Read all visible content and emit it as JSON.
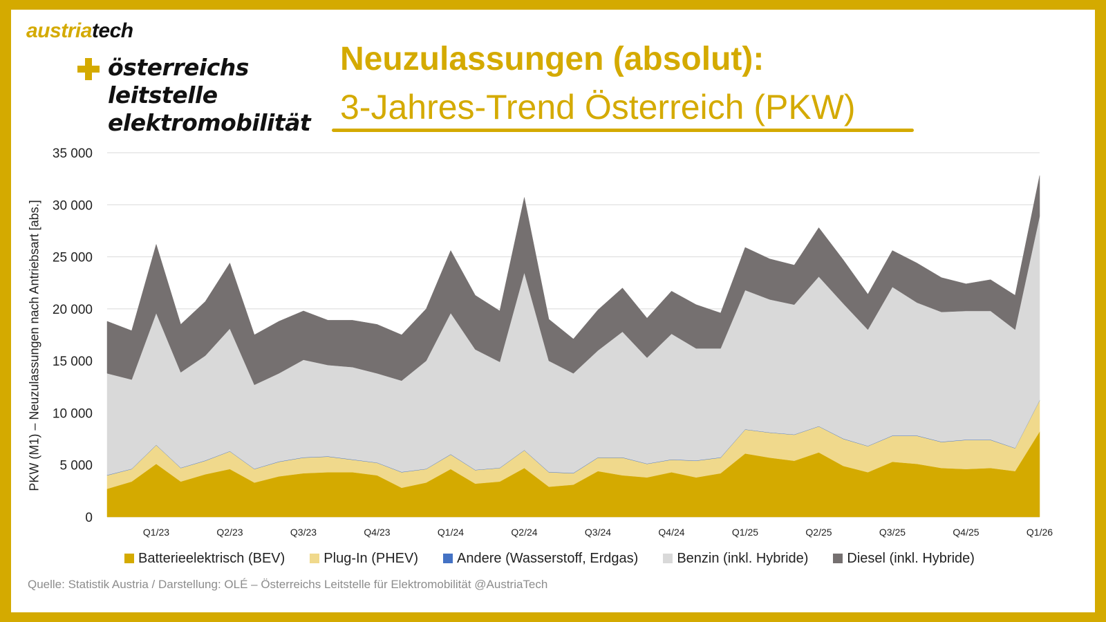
{
  "branding": {
    "logo_part1": "austria",
    "logo_part2": "tech",
    "ole_lines": [
      "österreichs",
      "leitstelle",
      "elektromobilität"
    ]
  },
  "title_line1": "Neuzulassungen (absolut):",
  "title_line2": "3-Jahres-Trend Österreich (PKW)",
  "source": "Quelle: Statistik Austria / Darstellung: OLÉ – Österreichs Leitstelle für Elektromobilität @AustriaTech",
  "colors": {
    "frame": "#d4aa00",
    "bev": "#d4aa00",
    "phev": "#f0d98c",
    "andere": "#4472c4",
    "benzin": "#d9d9d9",
    "diesel": "#757070"
  },
  "chart_data": {
    "type": "area",
    "stacked": true,
    "ylabel": "PKW (M1) – Neuzulassungen nach Antriebsart [abs.]",
    "ylim": [
      0,
      35000
    ],
    "y_ticks": [
      0,
      5000,
      10000,
      15000,
      20000,
      25000,
      30000,
      35000
    ],
    "y_tick_labels": [
      "0",
      "5 000",
      "10 000",
      "15 000",
      "20 000",
      "25 000",
      "30 000",
      "35 000"
    ],
    "grid": true,
    "legend_position": "bottom",
    "x": [
      "2022-11",
      "2022-12",
      "2023-01",
      "2023-02",
      "2023-03",
      "2023-04",
      "2023-05",
      "2023-06",
      "2023-07",
      "2023-08",
      "2023-09",
      "2023-10",
      "2023-11",
      "2023-12",
      "2024-01",
      "2024-02",
      "2024-03",
      "2024-04",
      "2024-05",
      "2024-06",
      "2024-07",
      "2024-08",
      "2024-09",
      "2024-10",
      "2024-11",
      "2024-12",
      "2025-01",
      "2025-02",
      "2025-03",
      "2025-04",
      "2025-05",
      "2025-06",
      "2025-07",
      "2025-08",
      "2025-09",
      "2025-10",
      "2025-11",
      "2025-12",
      "2026-01"
    ],
    "x_tick_labels": [
      {
        "label": "Q1/23",
        "at": 2
      },
      {
        "label": "Q2/23",
        "at": 5
      },
      {
        "label": "Q3/23",
        "at": 8
      },
      {
        "label": "Q4/23",
        "at": 11
      },
      {
        "label": "Q1/24",
        "at": 14
      },
      {
        "label": "Q2/24",
        "at": 17
      },
      {
        "label": "Q3/24",
        "at": 20
      },
      {
        "label": "Q4/24",
        "at": 23
      },
      {
        "label": "Q1/25",
        "at": 26
      },
      {
        "label": "Q2/25",
        "at": 29
      },
      {
        "label": "Q3/25",
        "at": 32
      },
      {
        "label": "Q4/25",
        "at": 35
      },
      {
        "label": "Q1/26",
        "at": 38
      }
    ],
    "series": [
      {
        "name": "Batterieelektrisch (BEV)",
        "color": "#d4aa00",
        "values": [
          2700,
          3400,
          5100,
          3400,
          4100,
          4600,
          3300,
          3900,
          4200,
          4300,
          4300,
          4000,
          2800,
          3300,
          4600,
          3200,
          3400,
          4700,
          2900,
          3100,
          4400,
          4000,
          3800,
          4300,
          3800,
          4200,
          6100,
          5700,
          5400,
          6200,
          4900,
          4300,
          5300,
          5100,
          4700,
          4600,
          4700,
          4400,
          8200
        ]
      },
      {
        "name": "Plug-In (PHEV)",
        "color": "#f0d98c",
        "values": [
          1300,
          1200,
          1800,
          1300,
          1300,
          1700,
          1300,
          1400,
          1500,
          1500,
          1200,
          1200,
          1500,
          1300,
          1400,
          1300,
          1300,
          1700,
          1400,
          1100,
          1300,
          1700,
          1300,
          1200,
          1600,
          1500,
          2300,
          2400,
          2500,
          2500,
          2600,
          2500,
          2500,
          2700,
          2500,
          2800,
          2700,
          2200,
          3000
        ]
      },
      {
        "name": "Andere (Wasserstoff, Erdgas)",
        "color": "#4472c4",
        "values": [
          30,
          30,
          30,
          30,
          30,
          30,
          30,
          30,
          30,
          30,
          30,
          30,
          30,
          30,
          30,
          30,
          30,
          30,
          30,
          30,
          30,
          30,
          30,
          30,
          30,
          30,
          30,
          30,
          30,
          30,
          30,
          30,
          30,
          30,
          30,
          30,
          30,
          30,
          30
        ]
      },
      {
        "name": "Benzin (inkl. Hybride)",
        "color": "#d9d9d9",
        "values": [
          9770,
          8570,
          12670,
          9170,
          10070,
          11770,
          8070,
          8470,
          9370,
          8770,
          8870,
          8570,
          8770,
          10370,
          13570,
          11570,
          10170,
          17070,
          10670,
          9570,
          10270,
          12070,
          10170,
          12070,
          10770,
          10470,
          13370,
          12770,
          12470,
          14370,
          12970,
          11170,
          14270,
          12770,
          12470,
          12370,
          12370,
          11370,
          17670
        ]
      },
      {
        "name": "Diesel (inkl. Hybride)",
        "color": "#757070",
        "values": [
          5000,
          4700,
          6600,
          4600,
          5200,
          6300,
          4800,
          5000,
          4700,
          4300,
          4500,
          4700,
          4400,
          5000,
          6000,
          5200,
          4900,
          7200,
          4000,
          3300,
          3900,
          4200,
          3800,
          4100,
          4200,
          3400,
          4100,
          3900,
          3800,
          4700,
          4200,
          3400,
          3500,
          3800,
          3300,
          2600,
          3000,
          3300,
          3900
        ]
      }
    ]
  }
}
